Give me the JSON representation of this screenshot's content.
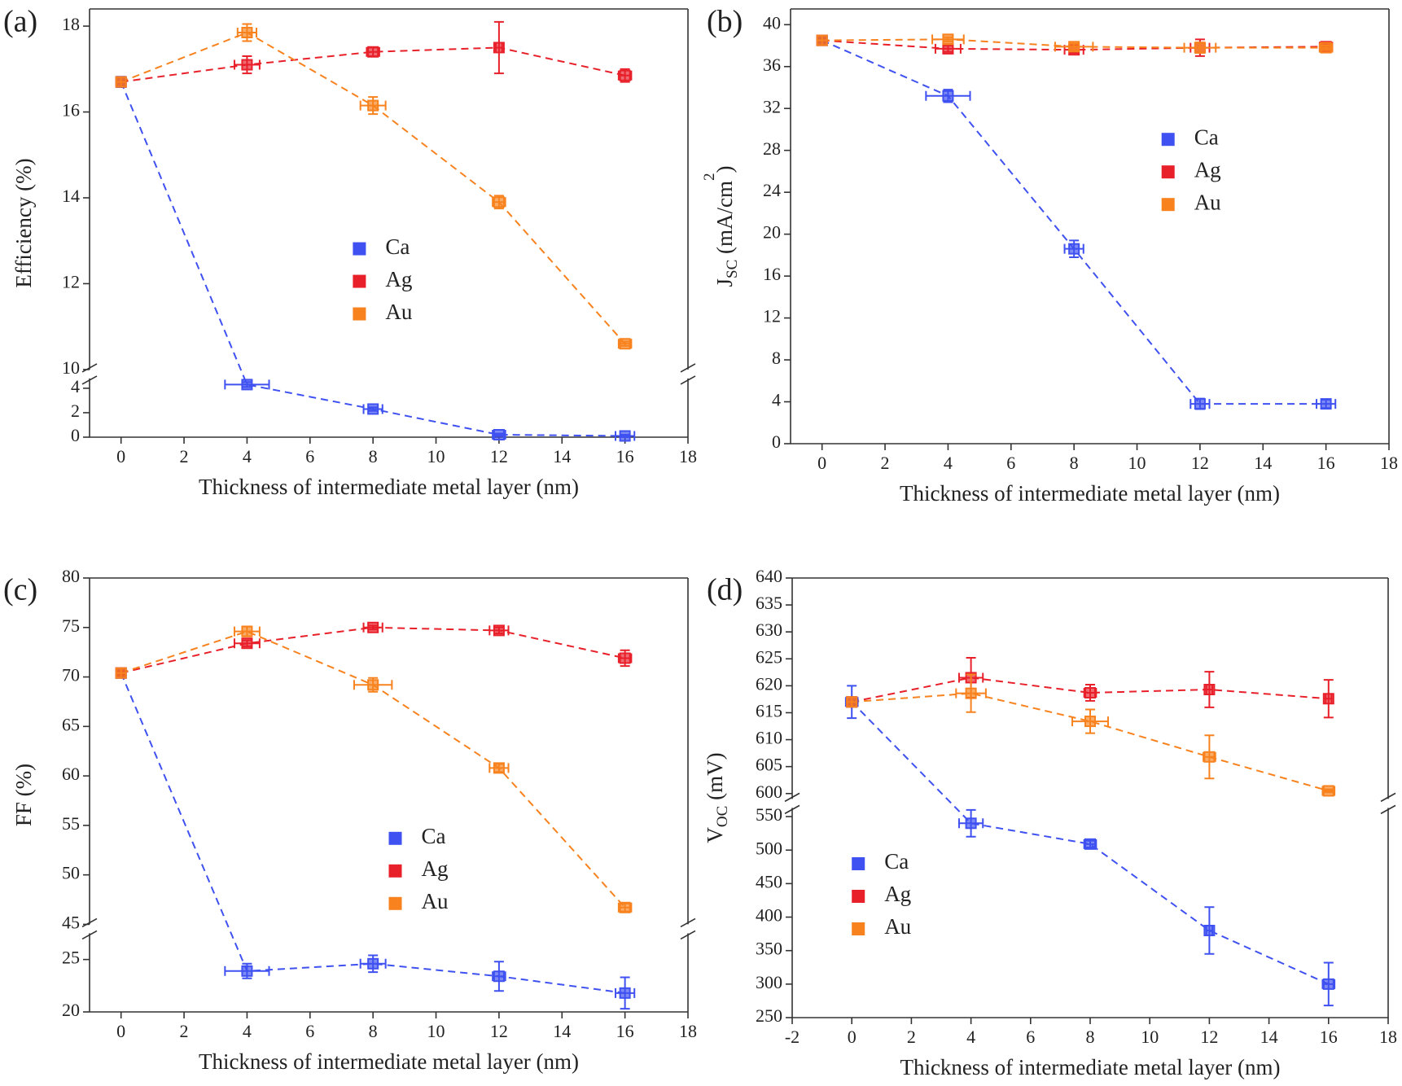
{
  "chart_data": [
    {
      "type": "line",
      "panel_label": "(a)",
      "x_label": "Thickness of intermediate metal layer (nm)",
      "y_label": "Efficiency (%)",
      "x": [
        0,
        4,
        8,
        12,
        16
      ],
      "xlim": [
        -1,
        18
      ],
      "xticks": [
        0,
        2,
        4,
        6,
        8,
        10,
        12,
        14,
        16,
        18
      ],
      "ylim": [
        0,
        18.4
      ],
      "ybreak": [
        4.8,
        10
      ],
      "yticks": [
        0,
        2,
        4,
        10,
        12,
        14,
        16,
        18
      ],
      "legend": "center",
      "series": [
        {
          "name": "Ca",
          "color": "#3f51f0",
          "values": [
            16.7,
            4.3,
            2.3,
            0.2,
            0.1
          ],
          "errors": [
            0.12,
            0.2,
            0.15,
            0.1,
            0.1
          ],
          "xerrors": [
            0,
            0.7,
            0.3,
            0.2,
            0.3
          ]
        },
        {
          "name": "Ag",
          "color": "#e8202a",
          "values": [
            16.7,
            17.1,
            17.4,
            17.5,
            16.85
          ],
          "errors": [
            0,
            0.2,
            0.1,
            0.6,
            0.15
          ],
          "xerrors": [
            0,
            0.4,
            0.2,
            0.1,
            0.2
          ]
        },
        {
          "name": "Au",
          "color": "#f7821e",
          "values": [
            16.7,
            17.85,
            16.15,
            13.9,
            10.6
          ],
          "errors": [
            0,
            0.2,
            0.2,
            0.15,
            0.05
          ],
          "xerrors": [
            0,
            0.3,
            0.4,
            0.2,
            0.2
          ]
        }
      ]
    },
    {
      "type": "line",
      "panel_label": "(b)",
      "x_label": "Thickness of intermediate metal layer (nm)",
      "y_label": [
        {
          "text": "J"
        },
        {
          "text": "SC",
          "shift": "sub"
        },
        {
          "text": " (mA/cm"
        },
        {
          "text": "2",
          "shift": "sup"
        },
        {
          "text": ")"
        }
      ],
      "x": [
        0,
        4,
        8,
        12,
        16
      ],
      "xlim": [
        -1,
        18
      ],
      "xticks": [
        0,
        2,
        4,
        6,
        8,
        10,
        12,
        14,
        16,
        18
      ],
      "ylim": [
        0,
        41.5
      ],
      "yticks": [
        0,
        4,
        8,
        12,
        16,
        20,
        24,
        28,
        32,
        36,
        40
      ],
      "legend": "upper right",
      "series": [
        {
          "name": "Ca",
          "color": "#3f51f0",
          "values": [
            38.5,
            33.2,
            18.6,
            3.8,
            3.8
          ],
          "errors": [
            0.2,
            0.6,
            0.8,
            0.5,
            0.4
          ],
          "xerrors": [
            0,
            0.7,
            0.3,
            0.3,
            0.3
          ]
        },
        {
          "name": "Ag",
          "color": "#e8202a",
          "values": [
            38.5,
            37.7,
            37.6,
            37.8,
            37.9
          ],
          "errors": [
            0,
            0.3,
            0.3,
            0.8,
            0.3
          ],
          "xerrors": [
            0,
            0.4,
            0.3,
            0.3,
            0.2
          ]
        },
        {
          "name": "Au",
          "color": "#f7821e",
          "values": [
            38.5,
            38.6,
            37.9,
            37.8,
            37.8
          ],
          "errors": [
            0,
            0.2,
            0.3,
            0.5,
            0.2
          ],
          "xerrors": [
            0,
            0.5,
            0.6,
            0.5,
            0.2
          ]
        }
      ]
    },
    {
      "type": "line",
      "panel_label": "(c)",
      "x_label": "Thickness of intermediate metal layer (nm)",
      "y_label": "FF (%)",
      "x": [
        0,
        4,
        8,
        12,
        16
      ],
      "xlim": [
        -1,
        18
      ],
      "xticks": [
        0,
        2,
        4,
        6,
        8,
        10,
        12,
        14,
        16,
        18
      ],
      "ylim": [
        20,
        80
      ],
      "ybreak": [
        27.5,
        45
      ],
      "yticks": [
        20,
        25,
        45,
        50,
        55,
        60,
        65,
        70,
        75,
        80
      ],
      "legend": "lower center",
      "series": [
        {
          "name": "Ca",
          "color": "#3f51f0",
          "values": [
            70.4,
            23.9,
            24.6,
            23.4,
            21.8
          ],
          "errors": [
            0.2,
            0.7,
            0.8,
            1.4,
            1.5
          ],
          "xerrors": [
            0,
            0.7,
            0.4,
            0.2,
            0.3
          ]
        },
        {
          "name": "Ag",
          "color": "#e8202a",
          "values": [
            70.4,
            73.4,
            75.0,
            74.7,
            71.9
          ],
          "errors": [
            0.2,
            0.3,
            0.2,
            0.3,
            0.8
          ],
          "xerrors": [
            0,
            0.4,
            0.3,
            0.3,
            0.2
          ]
        },
        {
          "name": "Au",
          "color": "#f7821e",
          "values": [
            70.4,
            74.6,
            69.2,
            60.8,
            46.7
          ],
          "errors": [
            0,
            0.5,
            0.7,
            0.4,
            0.4
          ],
          "xerrors": [
            0,
            0.4,
            0.6,
            0.3,
            0.2
          ]
        }
      ]
    },
    {
      "type": "line",
      "panel_label": "(d)",
      "x_label": "Thickness of intermediate metal layer (nm)",
      "y_label": [
        {
          "text": "V"
        },
        {
          "text": "OC",
          "shift": "sub"
        },
        {
          "text": " (mV)"
        }
      ],
      "x": [
        0,
        4,
        8,
        12,
        16
      ],
      "xlim": [
        -2,
        18
      ],
      "xticks": [
        -2,
        0,
        2,
        4,
        6,
        8,
        10,
        12,
        14,
        16,
        18
      ],
      "ylim": [
        250,
        640
      ],
      "ybreak": [
        563,
        599
      ],
      "yticks": [
        250,
        300,
        350,
        400,
        450,
        500,
        550,
        600,
        605,
        610,
        615,
        620,
        625,
        630,
        635,
        640
      ],
      "legend": "lower left",
      "series": [
        {
          "name": "Ca",
          "color": "#3f51f0",
          "values": [
            617,
            540,
            509,
            380,
            300
          ],
          "errors": [
            3,
            20,
            5,
            35,
            32
          ],
          "xerrors": [
            0.2,
            0.4,
            0.2,
            0.1,
            0.2
          ]
        },
        {
          "name": "Ag",
          "color": "#e8202a",
          "values": [
            617,
            621.5,
            618.7,
            619.3,
            617.6
          ],
          "errors": [
            0,
            3.7,
            1.5,
            3.3,
            3.5
          ],
          "xerrors": [
            0,
            0.4,
            0.2,
            0.1,
            0.1
          ]
        },
        {
          "name": "Au",
          "color": "#f7821e",
          "values": [
            617,
            618.6,
            613.4,
            606.8,
            600.5
          ],
          "errors": [
            0,
            3.5,
            2.2,
            4,
            0.3
          ],
          "xerrors": [
            0,
            0.5,
            0.6,
            0.2,
            0.2
          ]
        }
      ]
    }
  ]
}
